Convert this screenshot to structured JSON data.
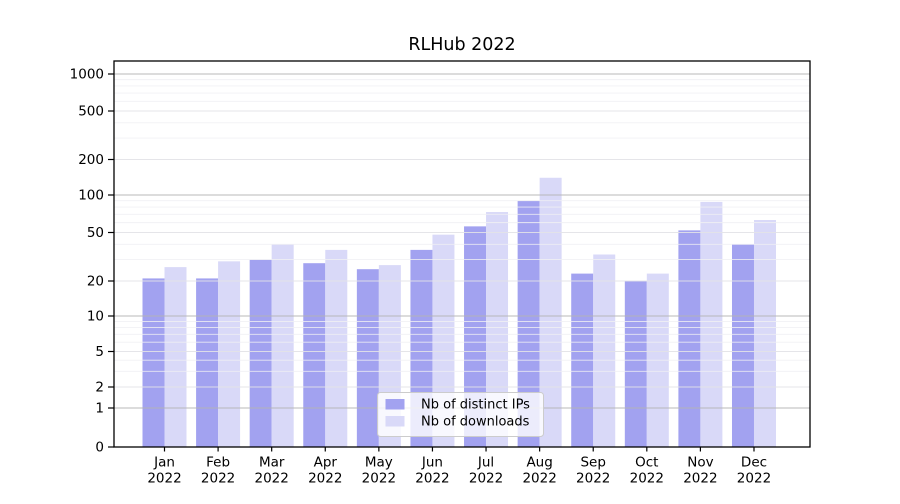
{
  "chart_data": {
    "type": "bar",
    "title": "RLHub 2022",
    "categories": [
      "Jan",
      "Feb",
      "Mar",
      "Apr",
      "May",
      "Jun",
      "Jul",
      "Aug",
      "Sep",
      "Oct",
      "Nov",
      "Dec"
    ],
    "category_year": "2022",
    "series": [
      {
        "name": "Nb of distinct IPs",
        "color": "#a2a2f0",
        "values": [
          21,
          21,
          30,
          28,
          25,
          36,
          56,
          90,
          23,
          20,
          52,
          40
        ]
      },
      {
        "name": "Nb of downloads",
        "color": "#d9d9f8",
        "values": [
          26,
          29,
          40,
          36,
          27,
          48,
          73,
          140,
          33,
          23,
          88,
          63
        ]
      }
    ],
    "yscale": "symlog",
    "y_ticks": [
      1000,
      500,
      200,
      100,
      50,
      20,
      10,
      5,
      2,
      1,
      0
    ],
    "ylim": [
      0,
      1300
    ],
    "xlabel": "",
    "ylabel": "",
    "grid": true,
    "legend_position": "lower center",
    "colors": {
      "spine": "#000000",
      "grid_major": "#b2b2b2",
      "grid_sub": "#e2e2e7",
      "grid_minor": "#f0f0f3",
      "legend_border": "#cccccc",
      "legend_bg": "#ffffff"
    }
  }
}
